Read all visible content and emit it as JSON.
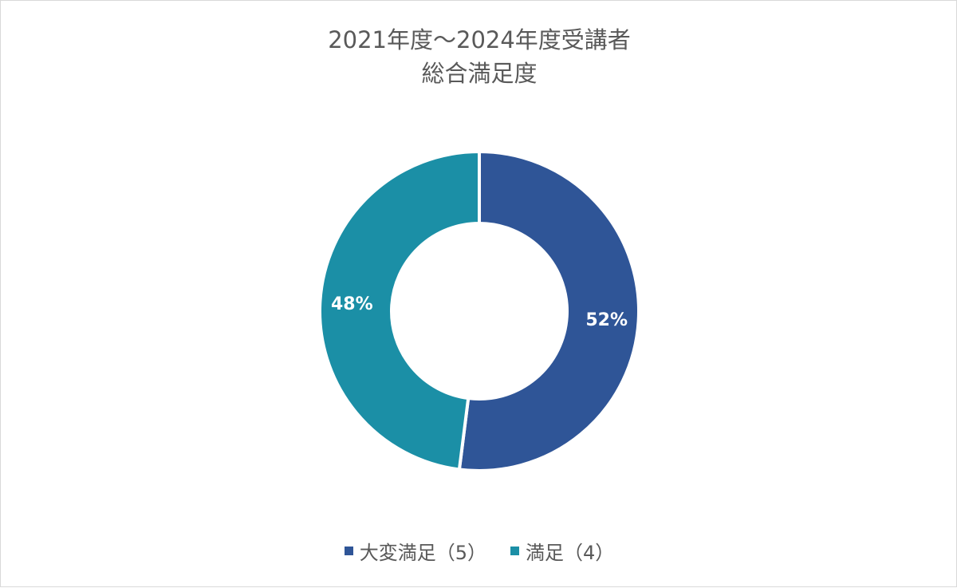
{
  "chart_data": {
    "type": "pie",
    "variant": "donut",
    "title": "2021年度～2024年度受講者 総合満足度",
    "title_lines": [
      "2021年度～2024年度受講者",
      "総合満足度"
    ],
    "categories": [
      "大変満足（5）",
      "満足（4）"
    ],
    "values": [
      52,
      48
    ],
    "value_labels": [
      "52%",
      "48%"
    ],
    "colors": [
      "#2f5597",
      "#1b8fa6"
    ],
    "start_angle": "12 o'clock, clockwise",
    "legend_position": "bottom"
  },
  "legend": {
    "items": [
      {
        "label": "大変満足（5）",
        "color": "#2f5597"
      },
      {
        "label": "満足（4）",
        "color": "#1b8fa6"
      }
    ]
  }
}
